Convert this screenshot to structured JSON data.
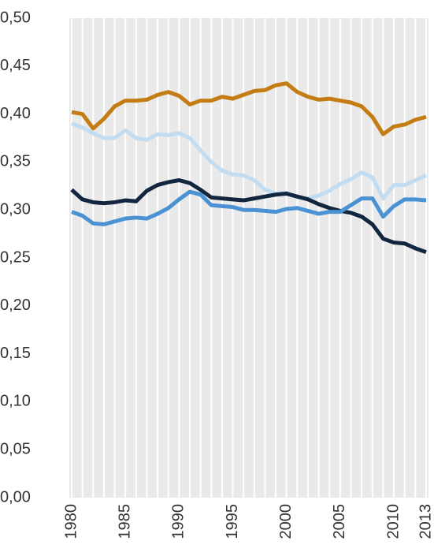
{
  "chart_data": {
    "type": "line",
    "x": [
      1980,
      1981,
      1982,
      1983,
      1984,
      1985,
      1986,
      1987,
      1988,
      1989,
      1990,
      1991,
      1992,
      1993,
      1994,
      1995,
      1996,
      1997,
      1998,
      1999,
      2000,
      2001,
      2002,
      2003,
      2004,
      2005,
      2006,
      2007,
      2008,
      2009,
      2010,
      2011,
      2012,
      2013
    ],
    "xlim": [
      1980,
      2013
    ],
    "xticks": [
      1980,
      1985,
      1990,
      1995,
      2000,
      2005,
      2010,
      2013
    ],
    "ylim": [
      0,
      0.5
    ],
    "yticks": [
      {
        "value": 0,
        "label": "0,00"
      },
      {
        "value": 0.05,
        "label": "0,05"
      },
      {
        "value": 0.1,
        "label": "0,10"
      },
      {
        "value": 0.15,
        "label": "0,15"
      },
      {
        "value": 0.2,
        "label": "0,20"
      },
      {
        "value": 0.25,
        "label": "0,25"
      },
      {
        "value": 0.3,
        "label": "0,30"
      },
      {
        "value": 0.35,
        "label": "0,35"
      },
      {
        "value": 0.4,
        "label": "0,40"
      },
      {
        "value": 0.45,
        "label": "0,45"
      },
      {
        "value": 0.5,
        "label": "0,50"
      }
    ],
    "grid": true,
    "series": [
      {
        "color": "#c47d14",
        "values": [
          0.402,
          0.4,
          0.385,
          0.395,
          0.408,
          0.414,
          0.414,
          0.415,
          0.42,
          0.423,
          0.419,
          0.41,
          0.414,
          0.414,
          0.418,
          0.416,
          0.42,
          0.424,
          0.425,
          0.43,
          0.432,
          0.423,
          0.418,
          0.415,
          0.416,
          0.414,
          0.412,
          0.408,
          0.397,
          0.379,
          0.387,
          0.389,
          0.394,
          0.397
        ]
      },
      {
        "color": "#c2ddf2",
        "values": [
          0.39,
          0.386,
          0.38,
          0.375,
          0.375,
          0.383,
          0.375,
          0.373,
          0.379,
          0.378,
          0.38,
          0.375,
          0.362,
          0.35,
          0.341,
          0.337,
          0.336,
          0.331,
          0.321,
          0.317,
          0.318,
          0.313,
          0.312,
          0.315,
          0.32,
          0.327,
          0.332,
          0.339,
          0.334,
          0.312,
          0.326,
          0.326,
          0.331,
          0.336
        ]
      },
      {
        "color": "#13263f",
        "values": [
          0.321,
          0.311,
          0.308,
          0.307,
          0.308,
          0.31,
          0.309,
          0.32,
          0.326,
          0.329,
          0.331,
          0.328,
          0.321,
          0.313,
          0.312,
          0.311,
          0.31,
          0.312,
          0.314,
          0.316,
          0.317,
          0.314,
          0.311,
          0.306,
          0.302,
          0.299,
          0.297,
          0.293,
          0.285,
          0.27,
          0.266,
          0.265,
          0.26,
          0.256
        ]
      },
      {
        "color": "#4a92d4",
        "values": [
          0.298,
          0.294,
          0.286,
          0.285,
          0.288,
          0.291,
          0.292,
          0.291,
          0.296,
          0.302,
          0.311,
          0.319,
          0.316,
          0.305,
          0.304,
          0.303,
          0.3,
          0.3,
          0.299,
          0.298,
          0.301,
          0.302,
          0.299,
          0.296,
          0.298,
          0.298,
          0.305,
          0.312,
          0.312,
          0.293,
          0.304,
          0.311,
          0.311,
          0.31
        ]
      }
    ]
  }
}
